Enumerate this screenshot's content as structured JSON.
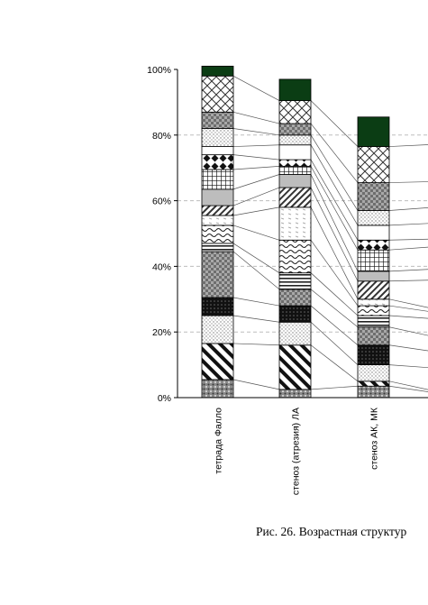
{
  "caption": "Рис. 26. Возрастная структур",
  "chart_data": {
    "type": "bar",
    "stacked": true,
    "percent": true,
    "categories": [
      "тетрада Фалло",
      "стеноз (атрезия) ЛА",
      "стеноз АК, МК"
    ],
    "y_ticks": [
      "0%",
      "20%",
      "40%",
      "60%",
      "80%",
      "100%"
    ],
    "ylim": [
      0,
      100
    ],
    "grid": "horizontal dashed",
    "segments": [
      {
        "fill": "dots-dark",
        "values": [
          5.5,
          2.5,
          3.5
        ]
      },
      {
        "fill": "diag-bold",
        "values": [
          11.0,
          13.5,
          1.5
        ]
      },
      {
        "fill": "dots-light",
        "values": [
          8.5,
          7.0,
          5.0
        ]
      },
      {
        "fill": "solid-black",
        "values": [
          5.5,
          5.0,
          6.0
        ]
      },
      {
        "fill": "checker",
        "values": [
          14.0,
          5.0,
          5.5
        ]
      },
      {
        "fill": "hlines",
        "values": [
          2.5,
          5.0,
          3.5
        ]
      },
      {
        "fill": "waves",
        "values": [
          5.5,
          10.0,
          3.0
        ]
      },
      {
        "fill": "dashes",
        "values": [
          3.0,
          10.0,
          2.0
        ]
      },
      {
        "fill": "diag-thin",
        "values": [
          3.0,
          6.0,
          5.5
        ]
      },
      {
        "fill": "grey",
        "values": [
          5.0,
          4.0,
          3.0
        ]
      },
      {
        "fill": "grid",
        "values": [
          6.0,
          2.5,
          6.5
        ]
      },
      {
        "fill": "diamonds",
        "values": [
          4.5,
          2.0,
          3.0
        ]
      },
      {
        "fill": "white",
        "values": [
          2.5,
          4.5,
          4.5
        ]
      },
      {
        "fill": "dots-light",
        "values": [
          5.5,
          3.0,
          4.5
        ]
      },
      {
        "fill": "checker",
        "values": [
          5.0,
          3.5,
          8.5
        ]
      },
      {
        "fill": "diamond-grid",
        "values": [
          11.0,
          7.0,
          11.0
        ]
      },
      {
        "fill": "solid-green",
        "values": [
          3.0,
          6.5,
          9.0
        ]
      }
    ],
    "colors": {
      "green": "#0b3d14",
      "black": "#000000",
      "grid": "#bdbdbd"
    }
  }
}
